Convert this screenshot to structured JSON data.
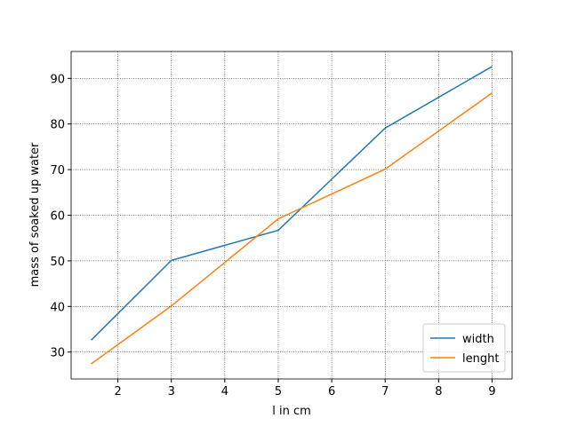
{
  "chart_data": {
    "type": "line",
    "x": [
      1.5,
      3,
      5,
      7,
      9
    ],
    "series": [
      {
        "name": "width",
        "color": "#1f77b4",
        "values": [
          32.6,
          50.1,
          56.7,
          79.1,
          92.6
        ]
      },
      {
        "name": "lenght",
        "color": "#ff7f0e",
        "values": [
          27.4,
          40.1,
          59.2,
          70.1,
          86.8
        ]
      }
    ],
    "xlabel": "l in cm",
    "ylabel": "mass of soaked up water",
    "xlim": [
      1.125,
      9.375
    ],
    "ylim": [
      24.1,
      95.9
    ],
    "xticks": [
      2,
      3,
      4,
      5,
      6,
      7,
      8,
      9
    ],
    "yticks": [
      30,
      40,
      50,
      60,
      70,
      80,
      90
    ],
    "grid": true,
    "legend": "lower right"
  }
}
